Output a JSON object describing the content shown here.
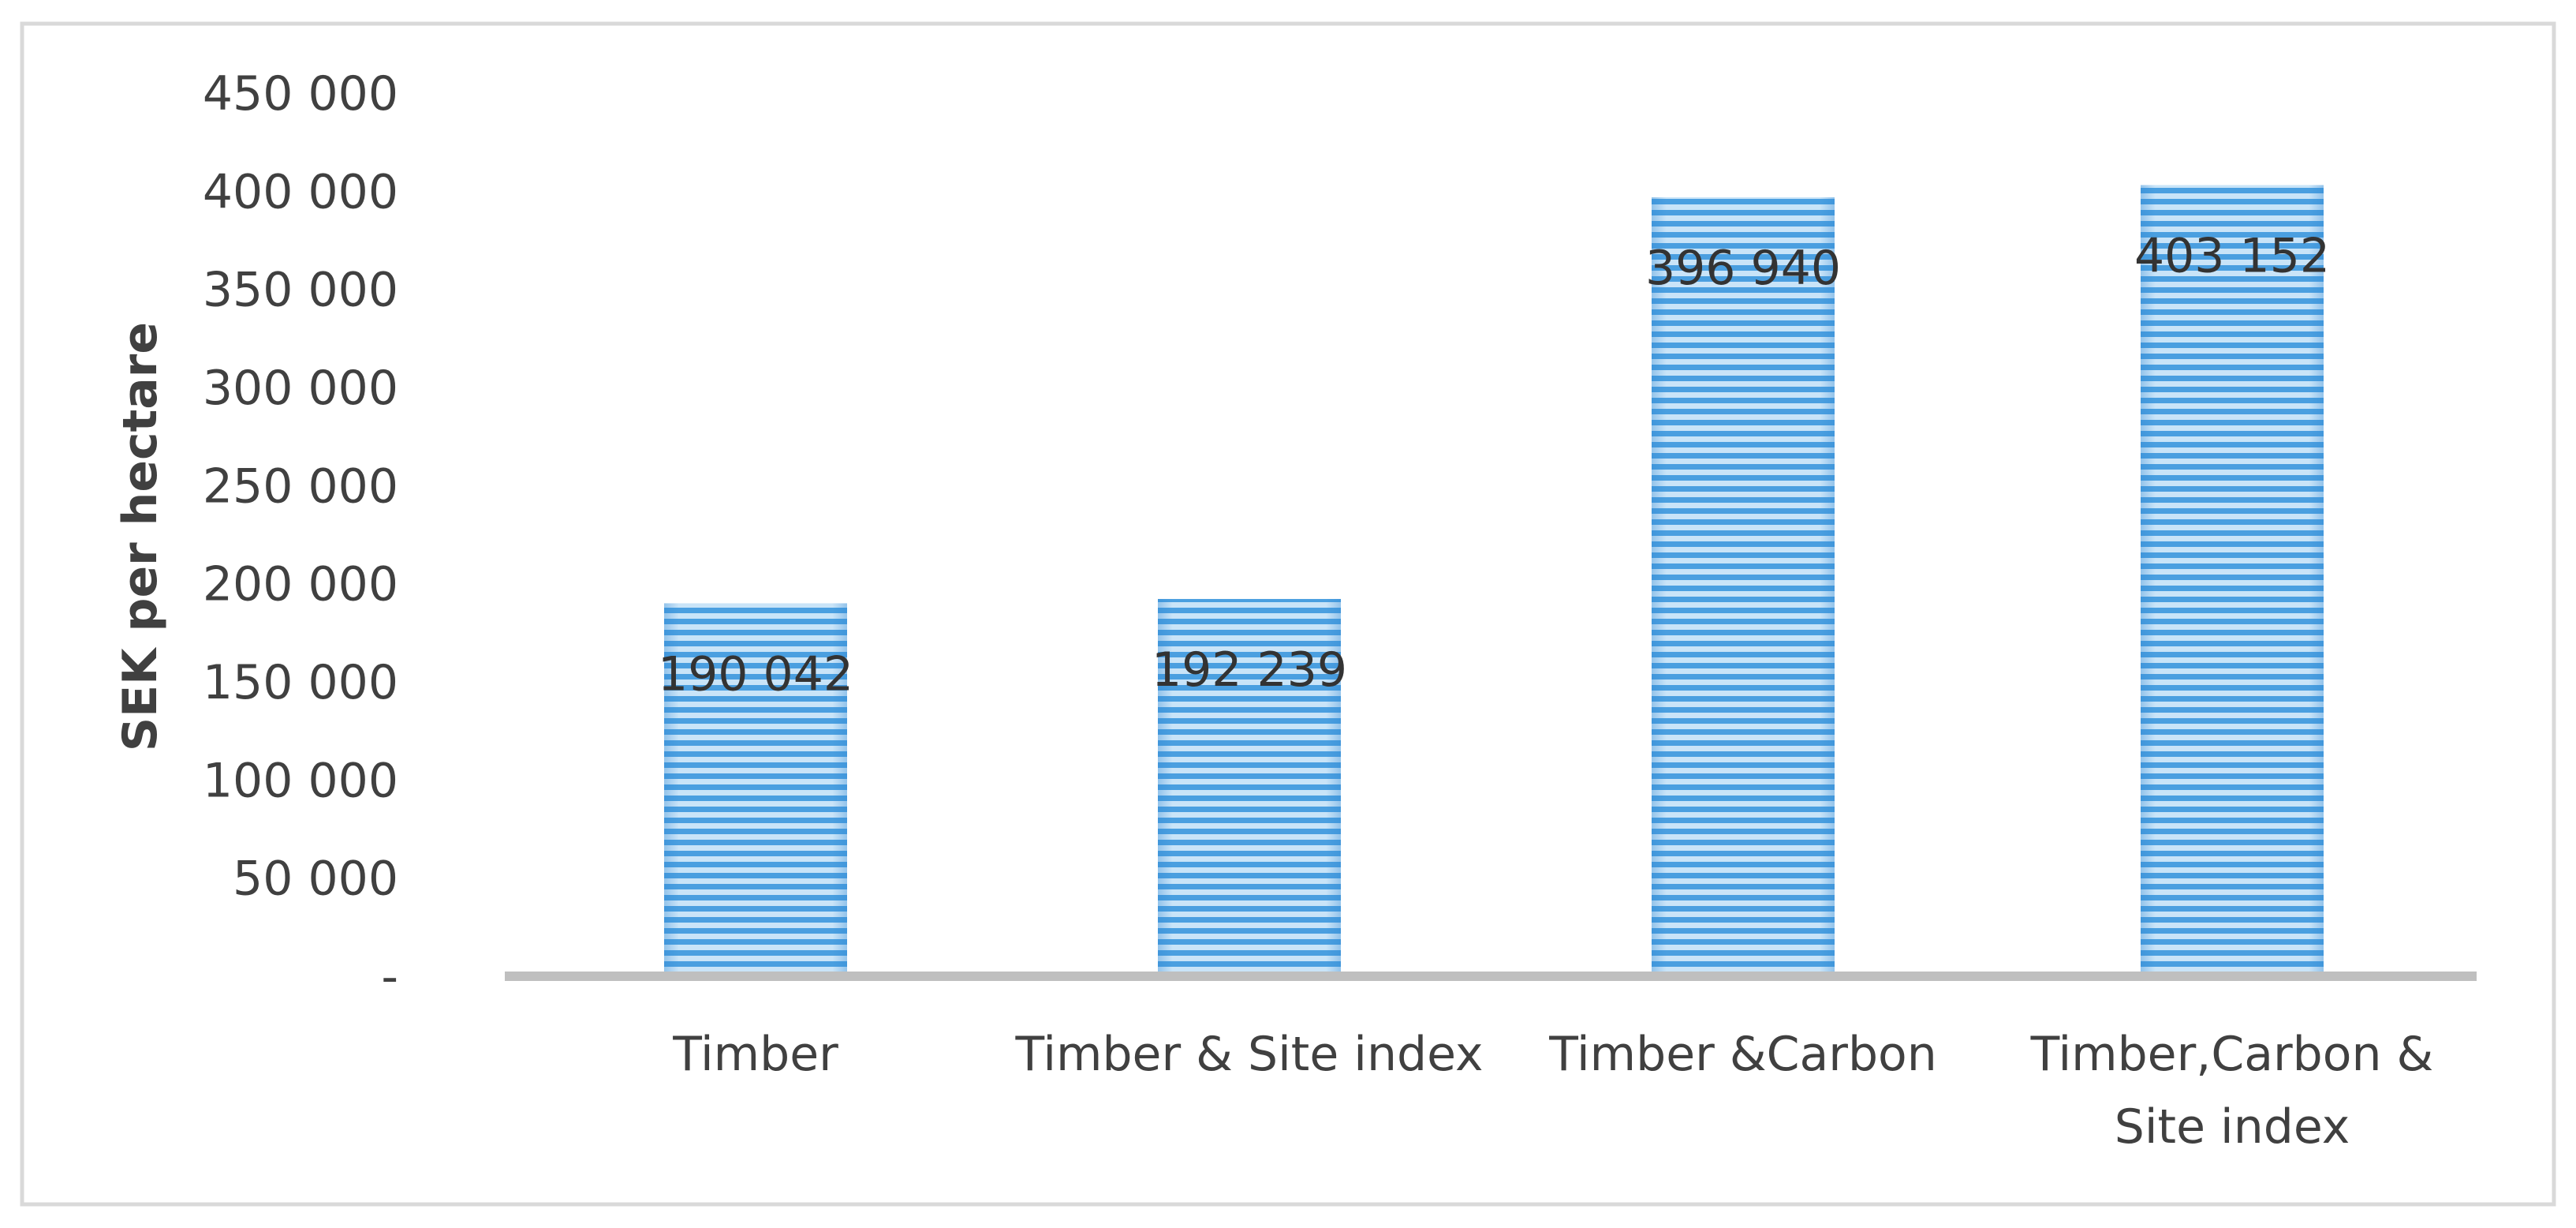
{
  "chart_data": {
    "type": "bar",
    "title": "",
    "xlabel": "",
    "ylabel": "SEK per hectare",
    "categories": [
      [
        "Timber"
      ],
      [
        "Timber & Site index"
      ],
      [
        "Timber &Carbon"
      ],
      [
        "Timber,Carbon &",
        "Site index"
      ]
    ],
    "values": [
      190042,
      192239,
      396940,
      403152
    ],
    "value_labels": [
      "190 042",
      "192 239",
      "396 940",
      "403 152"
    ],
    "ylim": [
      0,
      450000
    ],
    "yticks": [
      0,
      50000,
      100000,
      150000,
      200000,
      250000,
      300000,
      350000,
      400000,
      450000
    ],
    "ytick_labels": [
      "-",
      "50 000",
      "100 000",
      "150 000",
      "200 000",
      "250 000",
      "300 000",
      "350 000",
      "400 000",
      "450 000"
    ],
    "grid": false,
    "legend": "none",
    "colors": {
      "bar_fill": "#5aa9e6",
      "bar_stripe_light": "#c9e4f8",
      "bar_stripe_dark": "#3d95dc",
      "axis_line": "#bfbfbf",
      "frame_border": "#d9d9d9",
      "text": "#404040"
    }
  }
}
